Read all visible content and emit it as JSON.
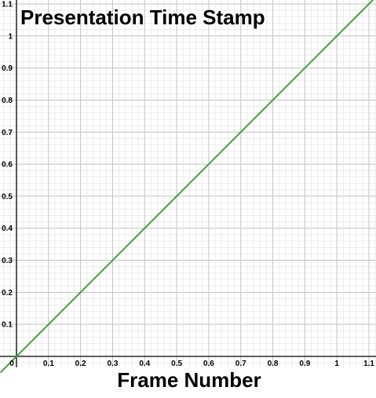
{
  "chart_data": {
    "type": "line",
    "ylabel": "Presentation Time Stamp",
    "xlabel": "Frame Number",
    "xlim": [
      0,
      1.1
    ],
    "ylim": [
      0,
      1.1
    ],
    "x_ticks": [
      "0.1",
      "0.2",
      "0.3",
      "0.4",
      "0.5",
      "0.6",
      "0.7",
      "0.8",
      "0.9",
      "1",
      "1.1"
    ],
    "y_ticks": [
      "0.1",
      "0.2",
      "0.3",
      "0.4",
      "0.5",
      "0.6",
      "0.7",
      "0.8",
      "0.9",
      "1",
      "1.1"
    ],
    "origin_label": "0",
    "grid": true,
    "series": [
      {
        "x": [
          -0.05,
          1.15
        ],
        "y": [
          -0.05,
          1.15
        ],
        "color": "#4a9a3f"
      }
    ],
    "colors": {
      "major_grid": "#c4c4c4",
      "minor_grid": "#ececec",
      "axis": "#000000",
      "line": "#4a9a3f"
    }
  }
}
